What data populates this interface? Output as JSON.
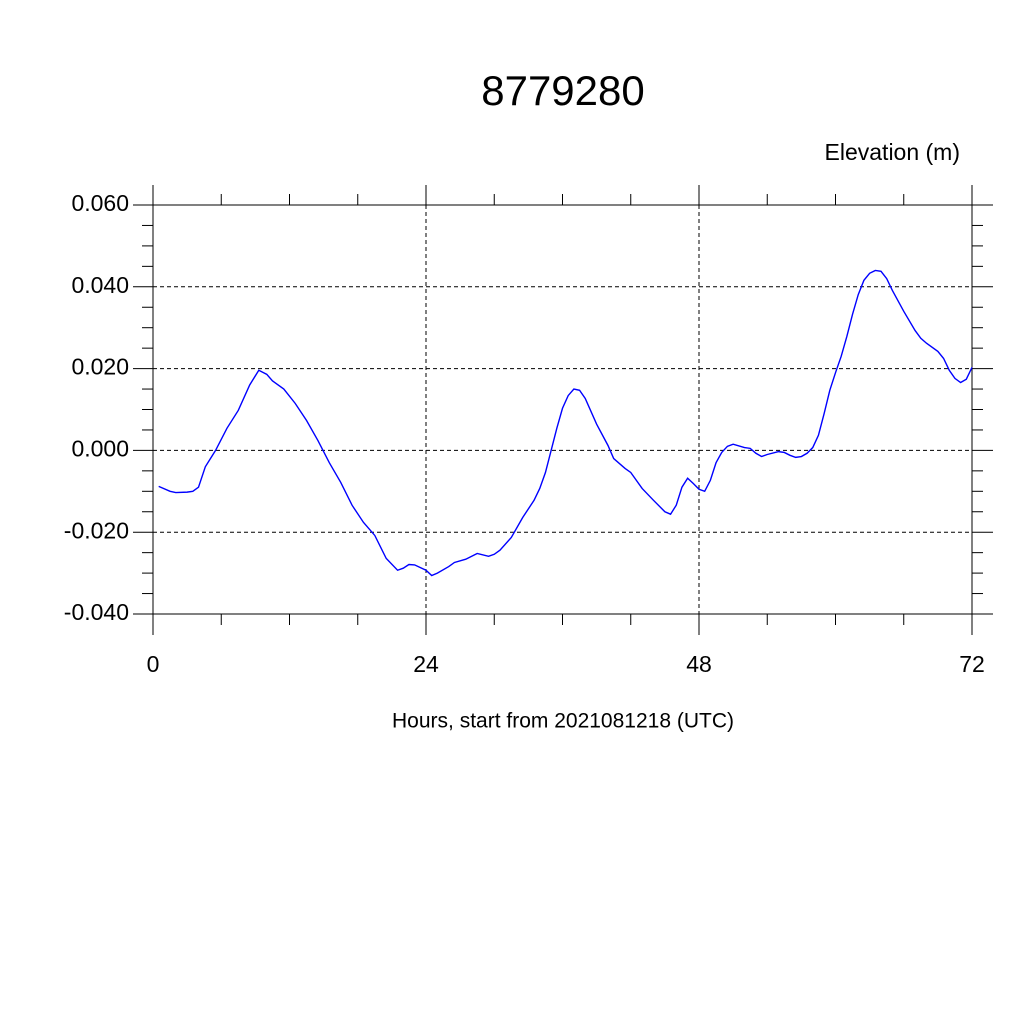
{
  "chart_data": {
    "type": "line",
    "title": "8779280",
    "subtitle": "Elevation (m)",
    "x_label": "Hours, start from 2021081218 (UTC)",
    "xlim": [
      0,
      72
    ],
    "ylim": [
      -0.04,
      0.06
    ],
    "xticks": [
      0,
      24,
      48,
      72
    ],
    "yticks": [
      {
        "value": -0.04,
        "label": "-0.040"
      },
      {
        "value": -0.02,
        "label": "-0.020"
      },
      {
        "value": 0,
        "label": "0.000"
      },
      {
        "value": 0.02,
        "label": "0.020"
      },
      {
        "value": 0.04,
        "label": "0.040"
      },
      {
        "value": 0.06,
        "label": "0.060"
      }
    ],
    "x_minor_ticks": [
      6,
      12,
      18,
      30,
      36,
      42,
      54,
      60,
      66
    ],
    "y_minor_ticks": [
      -0.035,
      -0.03,
      -0.025,
      -0.015,
      -0.01,
      -0.005,
      0.005,
      0.01,
      0.015,
      0.025,
      0.03,
      0.035,
      0.045,
      0.05,
      0.055
    ],
    "grid": true,
    "grid_style": "dashed",
    "x": [
      0.5,
      1.5,
      2,
      3,
      3.5,
      4,
      4.6,
      5.5,
      6.5,
      7.5,
      8.5,
      9.3,
      10,
      10.5,
      11.5,
      12.5,
      13.5,
      14.5,
      15.5,
      16.5,
      17.5,
      18.5,
      19.5,
      20.5,
      21.5,
      22,
      22.5,
      23,
      24,
      24.5,
      25,
      26,
      26.5,
      27.5,
      28.5,
      29.5,
      30,
      30.5,
      31.5,
      32.5,
      33.5,
      34,
      34.5,
      35,
      35.5,
      36,
      36.5,
      37,
      37.5,
      38,
      39,
      40,
      40.5,
      41.5,
      42,
      43,
      44,
      45,
      45.5,
      46,
      46.5,
      47,
      47.5,
      48,
      48.5,
      49,
      49.5,
      50,
      50.5,
      51,
      52,
      52.5,
      53,
      53.5,
      54,
      55,
      55.5,
      56,
      56.5,
      57,
      57.5,
      58,
      58.5,
      59,
      59.5,
      60,
      60.5,
      61,
      61.5,
      62,
      62.5,
      63,
      63.5,
      64,
      64.5,
      65,
      66,
      67,
      67.5,
      68,
      69,
      69.5,
      70,
      70.5,
      71,
      71.5,
      72
    ],
    "series": [
      {
        "color": "#0000ff",
        "values": [
          -0.0088,
          -0.01,
          -0.0103,
          -0.0102,
          -0.01,
          -0.009,
          -0.004,
          0.0,
          0.0054,
          0.0098,
          0.016,
          0.0196,
          0.0186,
          0.017,
          0.015,
          0.0115,
          0.0073,
          0.0024,
          -0.003,
          -0.0078,
          -0.0134,
          -0.0176,
          -0.0208,
          -0.0264,
          -0.0293,
          -0.0288,
          -0.0279,
          -0.028,
          -0.0293,
          -0.0306,
          -0.03,
          -0.0284,
          -0.0274,
          -0.0266,
          -0.0252,
          -0.0259,
          -0.0254,
          -0.0244,
          -0.0213,
          -0.0164,
          -0.0122,
          -0.0093,
          -0.0054,
          0.0,
          0.0054,
          0.0103,
          0.0134,
          0.015,
          0.0147,
          0.0127,
          0.0064,
          0.0012,
          -0.002,
          -0.0044,
          -0.0054,
          -0.0093,
          -0.0122,
          -0.015,
          -0.0156,
          -0.0134,
          -0.009,
          -0.0068,
          -0.0081,
          -0.0095,
          -0.01,
          -0.0073,
          -0.003,
          -0.0005,
          0.001,
          0.0015,
          0.0007,
          0.0005,
          -0.0007,
          -0.0015,
          -0.001,
          -0.0003,
          -0.0005,
          -0.0012,
          -0.0017,
          -0.0015,
          -0.0007,
          0.0007,
          0.0037,
          0.009,
          0.0147,
          0.019,
          0.023,
          0.0279,
          0.0333,
          0.0381,
          0.0416,
          0.0433,
          0.044,
          0.0438,
          0.042,
          0.0391,
          0.034,
          0.0293,
          0.0274,
          0.0262,
          0.0242,
          0.0225,
          0.0196,
          0.0176,
          0.0166,
          0.0174,
          0.0203
        ]
      }
    ]
  }
}
